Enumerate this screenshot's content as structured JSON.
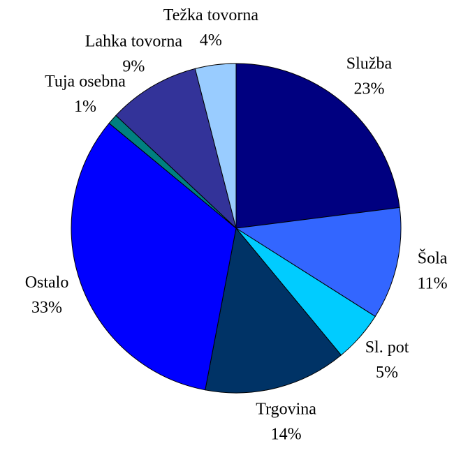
{
  "chart_data": {
    "type": "pie",
    "categories": [
      "Služba",
      "Šola",
      "Sl. pot",
      "Trgovina",
      "Ostalo",
      "Tuja osebna",
      "Lahka tovorna",
      "Težka tovorna"
    ],
    "values": [
      23,
      11,
      5,
      14,
      33,
      1,
      9,
      4
    ],
    "value_labels": [
      "23%",
      "11%",
      "5%",
      "14%",
      "33%",
      "1%",
      "9%",
      "4%"
    ],
    "colors": [
      "#000080",
      "#3366ff",
      "#00ccff",
      "#003366",
      "#0000ff",
      "#008080",
      "#333399",
      "#99ccff"
    ]
  }
}
